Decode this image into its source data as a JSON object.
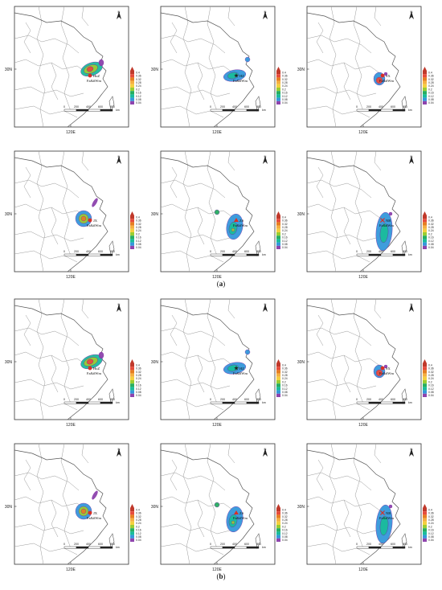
{
  "colorbar": {
    "ticks": [
      "0.4",
      "0.36",
      "0.32",
      "0.28",
      "0.24",
      "0.2",
      "0.16",
      "0.12",
      "0.08",
      "0.04"
    ],
    "colors": [
      "#c0392b",
      "#e74c3c",
      "#e67e22",
      "#f5b041",
      "#f4d03f",
      "#9acd32",
      "#27ae60",
      "#1abc9c",
      "#3498db",
      "#8e44ad"
    ]
  },
  "scale_bar": {
    "labels": [
      "0",
      "200",
      "400",
      "600",
      "800"
    ],
    "unit": "km"
  },
  "axis": {
    "lat_label": "30N",
    "lon_label": "120E"
  },
  "north_label": "N",
  "unit_text": "Fa&#Wm",
  "panel_rows": [
    {
      "panels": [
        {
          "station": "HuZ",
          "marker": "circle",
          "marker_color": "#d93025"
        },
        {
          "station": "HZ",
          "marker": "star",
          "marker_color": "#222222"
        },
        {
          "station": "SX",
          "marker": "circle",
          "marker_color": "#d93025"
        }
      ]
    },
    {
      "panels": [
        {
          "station": "JX",
          "marker": "circle",
          "marker_color": "#d93025"
        },
        {
          "station": "ZS",
          "marker": "triangle",
          "marker_color": "#d93025"
        },
        {
          "station": "NB",
          "marker": "cross",
          "marker_color": "#d93025"
        }
      ]
    },
    {
      "panels": [
        {
          "station": "HuZ",
          "marker": "circle",
          "marker_color": "#d93025"
        },
        {
          "station": "HZ",
          "marker": "star",
          "marker_color": "#222222"
        },
        {
          "station": "SX",
          "marker": "circle",
          "marker_color": "#d93025"
        }
      ]
    },
    {
      "panels": [
        {
          "station": "JX",
          "marker": "circle",
          "marker_color": "#d93025"
        },
        {
          "station": "ZS",
          "marker": "triangle",
          "marker_color": "#d93025"
        },
        {
          "station": "NB",
          "marker": "cross",
          "marker_color": "#d93025"
        }
      ]
    }
  ],
  "group_labels": [
    "a",
    "b"
  ]
}
